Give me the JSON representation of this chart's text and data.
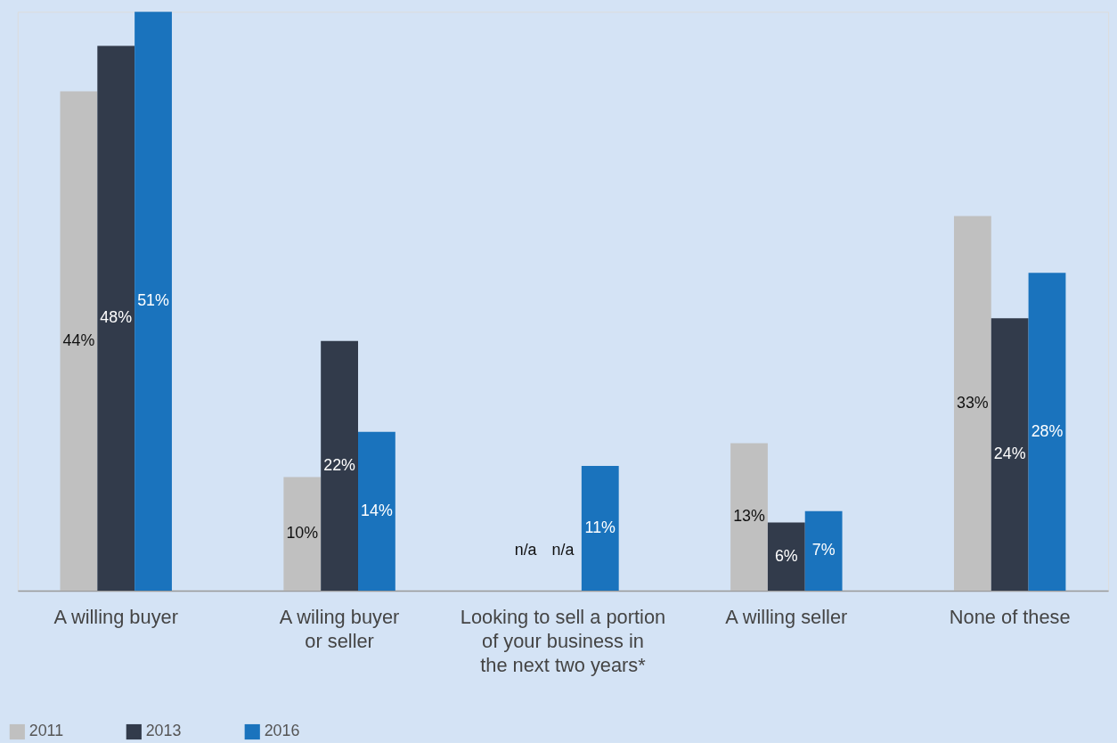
{
  "chart_data": {
    "type": "bar",
    "categories": [
      "A willing buyer",
      "A wiling buyer\nor seller",
      "Looking to sell a portion\nof your business in\nthe next two years*",
      "A willing seller",
      "None of these"
    ],
    "series": [
      {
        "name": "2011",
        "color": "#c0c0c0",
        "values": [
          44,
          10,
          null,
          13,
          33
        ],
        "value_labels": [
          "44%",
          "10%",
          "n/a",
          "13%",
          "33%"
        ]
      },
      {
        "name": "2013",
        "color": "#323b4b",
        "values": [
          48,
          22,
          null,
          6,
          24
        ],
        "value_labels": [
          "48%",
          "22%",
          "n/a",
          "6%",
          "24%"
        ]
      },
      {
        "name": "2016",
        "color": "#1a73bd",
        "values": [
          51,
          14,
          11,
          7,
          28
        ],
        "value_labels": [
          "51%",
          "14%",
          "11%",
          "7%",
          "28%"
        ]
      }
    ],
    "ylim": [
      0,
      51
    ],
    "tick_labels": "x",
    "grid": false,
    "legend": "bottom left"
  }
}
